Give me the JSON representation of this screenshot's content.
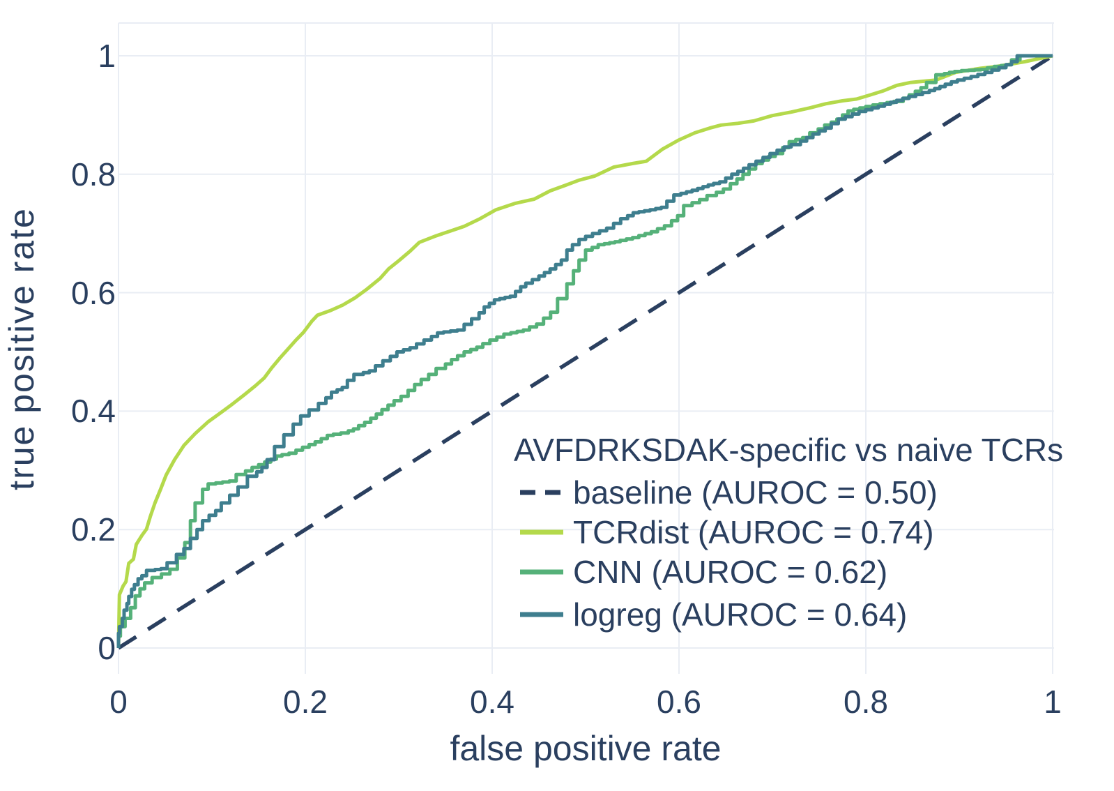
{
  "chart_data": {
    "type": "line",
    "chart_kind": "roc-curve",
    "title": "AVFDRKSDAK-specific vs naive TCRs",
    "xlabel": "false positive rate",
    "ylabel": "true positive rate",
    "xlim": [
      0,
      1
    ],
    "ylim": [
      0,
      1
    ],
    "x_ticks": [
      "0",
      "0.2",
      "0.4",
      "0.6",
      "0.8",
      "1"
    ],
    "y_ticks": [
      "0",
      "0.2",
      "0.4",
      "0.6",
      "0.8",
      "1"
    ],
    "grid": true,
    "legend_position": "lower right",
    "background_color": "#ffffff",
    "grid_color": "#e9edf4",
    "text_color": "#2a3f5f",
    "series": [
      {
        "id": "baseline",
        "name": "baseline (AUROC = 0.50)",
        "auroc": 0.5,
        "color": "#2a3f5f",
        "dash": true,
        "step": false,
        "points": [
          [
            0,
            0
          ],
          [
            1,
            1
          ]
        ]
      },
      {
        "id": "tcrdist",
        "name": "TCRdist (AUROC = 0.74)",
        "auroc": 0.74,
        "color": "#b4d94b",
        "dash": false,
        "step": false,
        "points": [
          [
            0,
            0
          ],
          [
            0.001,
            0.09
          ],
          [
            0.005,
            0.105
          ],
          [
            0.008,
            0.112
          ],
          [
            0.011,
            0.143
          ],
          [
            0.016,
            0.15
          ],
          [
            0.019,
            0.175
          ],
          [
            0.025,
            0.19
          ],
          [
            0.03,
            0.201
          ],
          [
            0.034,
            0.222
          ],
          [
            0.039,
            0.245
          ],
          [
            0.045,
            0.268
          ],
          [
            0.051,
            0.292
          ],
          [
            0.06,
            0.318
          ],
          [
            0.07,
            0.342
          ],
          [
            0.082,
            0.362
          ],
          [
            0.096,
            0.382
          ],
          [
            0.11,
            0.398
          ],
          [
            0.122,
            0.412
          ],
          [
            0.135,
            0.428
          ],
          [
            0.146,
            0.442
          ],
          [
            0.156,
            0.456
          ],
          [
            0.164,
            0.473
          ],
          [
            0.173,
            0.49
          ],
          [
            0.181,
            0.504
          ],
          [
            0.19,
            0.52
          ],
          [
            0.198,
            0.533
          ],
          [
            0.207,
            0.552
          ],
          [
            0.213,
            0.562
          ],
          [
            0.227,
            0.57
          ],
          [
            0.24,
            0.579
          ],
          [
            0.253,
            0.591
          ],
          [
            0.266,
            0.606
          ],
          [
            0.28,
            0.624
          ],
          [
            0.289,
            0.64
          ],
          [
            0.3,
            0.654
          ],
          [
            0.312,
            0.67
          ],
          [
            0.322,
            0.685
          ],
          [
            0.34,
            0.696
          ],
          [
            0.353,
            0.703
          ],
          [
            0.37,
            0.712
          ],
          [
            0.386,
            0.724
          ],
          [
            0.404,
            0.74
          ],
          [
            0.425,
            0.751
          ],
          [
            0.445,
            0.758
          ],
          [
            0.462,
            0.772
          ],
          [
            0.478,
            0.781
          ],
          [
            0.493,
            0.79
          ],
          [
            0.51,
            0.797
          ],
          [
            0.53,
            0.812
          ],
          [
            0.55,
            0.818
          ],
          [
            0.565,
            0.822
          ],
          [
            0.582,
            0.842
          ],
          [
            0.6,
            0.858
          ],
          [
            0.617,
            0.87
          ],
          [
            0.633,
            0.878
          ],
          [
            0.645,
            0.883
          ],
          [
            0.663,
            0.886
          ],
          [
            0.68,
            0.89
          ],
          [
            0.7,
            0.899
          ],
          [
            0.72,
            0.905
          ],
          [
            0.74,
            0.912
          ],
          [
            0.757,
            0.919
          ],
          [
            0.775,
            0.924
          ],
          [
            0.79,
            0.927
          ],
          [
            0.805,
            0.934
          ],
          [
            0.819,
            0.941
          ],
          [
            0.833,
            0.95
          ],
          [
            0.848,
            0.955
          ],
          [
            0.875,
            0.959
          ],
          [
            0.896,
            0.972
          ],
          [
            0.923,
            0.979
          ],
          [
            0.94,
            0.982
          ],
          [
            0.955,
            0.986
          ],
          [
            0.97,
            0.99
          ],
          [
            0.985,
            0.995
          ],
          [
            1,
            1
          ]
        ]
      },
      {
        "id": "cnn",
        "name": "CNN (AUROC = 0.62)",
        "auroc": 0.62,
        "color": "#55b179",
        "dash": false,
        "step": true,
        "points": [
          [
            0,
            0
          ],
          [
            0.002,
            0.02
          ],
          [
            0.007,
            0.036
          ],
          [
            0.013,
            0.05
          ],
          [
            0.018,
            0.068
          ],
          [
            0.023,
            0.088
          ],
          [
            0.028,
            0.1
          ],
          [
            0.036,
            0.11
          ],
          [
            0.046,
            0.119
          ],
          [
            0.055,
            0.125
          ],
          [
            0.063,
            0.133
          ],
          [
            0.071,
            0.152
          ],
          [
            0.077,
            0.178
          ],
          [
            0.082,
            0.215
          ],
          [
            0.09,
            0.245
          ],
          [
            0.096,
            0.268
          ],
          [
            0.104,
            0.277
          ],
          [
            0.126,
            0.282
          ],
          [
            0.136,
            0.293
          ],
          [
            0.15,
            0.305
          ],
          [
            0.163,
            0.314
          ],
          [
            0.175,
            0.324
          ],
          [
            0.19,
            0.329
          ],
          [
            0.204,
            0.339
          ],
          [
            0.217,
            0.348
          ],
          [
            0.23,
            0.359
          ],
          [
            0.246,
            0.363
          ],
          [
            0.257,
            0.37
          ],
          [
            0.27,
            0.381
          ],
          [
            0.282,
            0.395
          ],
          [
            0.295,
            0.41
          ],
          [
            0.31,
            0.425
          ],
          [
            0.324,
            0.445
          ],
          [
            0.34,
            0.462
          ],
          [
            0.35,
            0.472
          ],
          [
            0.363,
            0.487
          ],
          [
            0.377,
            0.5
          ],
          [
            0.39,
            0.508
          ],
          [
            0.405,
            0.52
          ],
          [
            0.42,
            0.53
          ],
          [
            0.44,
            0.537
          ],
          [
            0.455,
            0.547
          ],
          [
            0.47,
            0.567
          ],
          [
            0.48,
            0.59
          ],
          [
            0.487,
            0.615
          ],
          [
            0.493,
            0.637
          ],
          [
            0.5,
            0.655
          ],
          [
            0.507,
            0.672
          ],
          [
            0.52,
            0.681
          ],
          [
            0.537,
            0.686
          ],
          [
            0.557,
            0.693
          ],
          [
            0.577,
            0.703
          ],
          [
            0.592,
            0.713
          ],
          [
            0.605,
            0.73
          ],
          [
            0.614,
            0.747
          ],
          [
            0.63,
            0.757
          ],
          [
            0.64,
            0.764
          ],
          [
            0.655,
            0.775
          ],
          [
            0.662,
            0.784
          ],
          [
            0.675,
            0.8
          ],
          [
            0.689,
            0.818
          ],
          [
            0.703,
            0.83
          ],
          [
            0.711,
            0.835
          ],
          [
            0.725,
            0.855
          ],
          [
            0.74,
            0.862
          ],
          [
            0.749,
            0.87
          ],
          [
            0.763,
            0.883
          ],
          [
            0.775,
            0.893
          ],
          [
            0.787,
            0.907
          ],
          [
            0.8,
            0.912
          ],
          [
            0.815,
            0.917
          ],
          [
            0.83,
            0.921
          ],
          [
            0.84,
            0.923
          ],
          [
            0.853,
            0.934
          ],
          [
            0.865,
            0.946
          ],
          [
            0.875,
            0.955
          ],
          [
            0.884,
            0.968
          ],
          [
            0.895,
            0.972
          ],
          [
            0.91,
            0.975
          ],
          [
            0.93,
            0.977
          ],
          [
            0.945,
            0.982
          ],
          [
            0.956,
            0.985
          ],
          [
            0.965,
            0.993
          ],
          [
            0.972,
            1
          ],
          [
            1,
            1
          ]
        ]
      },
      {
        "id": "logreg",
        "name": "logreg (AUROC = 0.64)",
        "auroc": 0.64,
        "color": "#3e7e8e",
        "dash": false,
        "step": true,
        "points": [
          [
            0,
            0
          ],
          [
            0.001,
            0.025
          ],
          [
            0.004,
            0.036
          ],
          [
            0.006,
            0.05
          ],
          [
            0.009,
            0.064
          ],
          [
            0.011,
            0.075
          ],
          [
            0.014,
            0.087
          ],
          [
            0.017,
            0.099
          ],
          [
            0.021,
            0.107
          ],
          [
            0.025,
            0.117
          ],
          [
            0.03,
            0.122
          ],
          [
            0.039,
            0.131
          ],
          [
            0.052,
            0.134
          ],
          [
            0.062,
            0.144
          ],
          [
            0.07,
            0.158
          ],
          [
            0.077,
            0.168
          ],
          [
            0.084,
            0.185
          ],
          [
            0.09,
            0.2
          ],
          [
            0.097,
            0.215
          ],
          [
            0.104,
            0.224
          ],
          [
            0.11,
            0.232
          ],
          [
            0.119,
            0.245
          ],
          [
            0.128,
            0.258
          ],
          [
            0.138,
            0.272
          ],
          [
            0.148,
            0.29
          ],
          [
            0.159,
            0.305
          ],
          [
            0.167,
            0.318
          ],
          [
            0.177,
            0.34
          ],
          [
            0.187,
            0.36
          ],
          [
            0.195,
            0.378
          ],
          [
            0.204,
            0.392
          ],
          [
            0.214,
            0.402
          ],
          [
            0.222,
            0.413
          ],
          [
            0.234,
            0.432
          ],
          [
            0.245,
            0.44
          ],
          [
            0.252,
            0.452
          ],
          [
            0.262,
            0.462
          ],
          [
            0.275,
            0.468
          ],
          [
            0.291,
            0.485
          ],
          [
            0.305,
            0.5
          ],
          [
            0.319,
            0.507
          ],
          [
            0.335,
            0.52
          ],
          [
            0.348,
            0.532
          ],
          [
            0.37,
            0.537
          ],
          [
            0.386,
            0.556
          ],
          [
            0.397,
            0.576
          ],
          [
            0.408,
            0.588
          ],
          [
            0.425,
            0.594
          ],
          [
            0.436,
            0.61
          ],
          [
            0.45,
            0.622
          ],
          [
            0.468,
            0.64
          ],
          [
            0.48,
            0.655
          ],
          [
            0.486,
            0.672
          ],
          [
            0.5,
            0.69
          ],
          [
            0.515,
            0.7
          ],
          [
            0.53,
            0.709
          ],
          [
            0.545,
            0.725
          ],
          [
            0.557,
            0.735
          ],
          [
            0.575,
            0.74
          ],
          [
            0.587,
            0.744
          ],
          [
            0.602,
            0.765
          ],
          [
            0.62,
            0.773
          ],
          [
            0.637,
            0.782
          ],
          [
            0.65,
            0.787
          ],
          [
            0.663,
            0.8
          ],
          [
            0.675,
            0.81
          ],
          [
            0.69,
            0.822
          ],
          [
            0.705,
            0.835
          ],
          [
            0.72,
            0.846
          ],
          [
            0.73,
            0.85
          ],
          [
            0.75,
            0.868
          ],
          [
            0.763,
            0.878
          ],
          [
            0.778,
            0.893
          ],
          [
            0.8,
            0.906
          ],
          [
            0.82,
            0.915
          ],
          [
            0.846,
            0.928
          ],
          [
            0.868,
            0.938
          ],
          [
            0.885,
            0.948
          ],
          [
            0.898,
            0.956
          ],
          [
            0.92,
            0.965
          ],
          [
            0.935,
            0.972
          ],
          [
            0.95,
            0.98
          ],
          [
            0.962,
            0.99
          ],
          [
            0.972,
            1
          ],
          [
            1,
            1
          ]
        ]
      }
    ]
  }
}
